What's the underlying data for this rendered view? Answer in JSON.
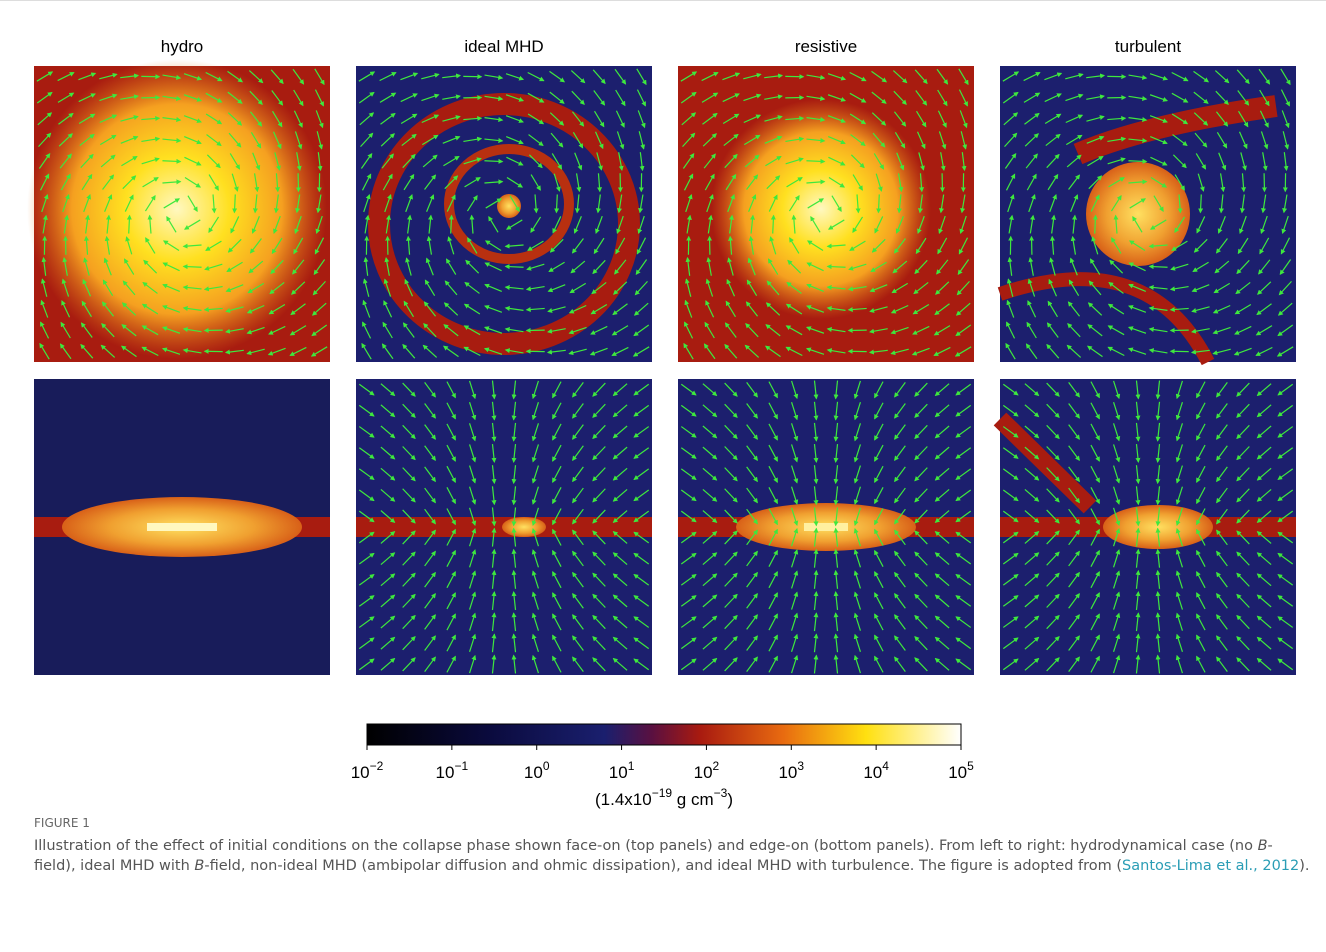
{
  "columns": [
    "hydro",
    "ideal MHD",
    "resistive",
    "turbulent"
  ],
  "colorbar": {
    "scale": "log",
    "lim": [
      0.01,
      100000
    ],
    "ticks": [
      {
        "value": 0.01,
        "base": "10",
        "exponent": "−2"
      },
      {
        "value": 0.1,
        "base": "10",
        "exponent": "−1"
      },
      {
        "value": 1,
        "base": "10",
        "exponent": "0"
      },
      {
        "value": 10,
        "base": "10",
        "exponent": "1"
      },
      {
        "value": 100,
        "base": "10",
        "exponent": "2"
      },
      {
        "value": 1000,
        "base": "10",
        "exponent": "3"
      },
      {
        "value": 10000,
        "base": "10",
        "exponent": "4"
      },
      {
        "value": 100000,
        "base": "10",
        "exponent": "5"
      }
    ],
    "label": [
      {
        "text": "(1.4x10"
      },
      {
        "sup": "−19"
      },
      {
        "text": " g cm"
      },
      {
        "sup": "−3"
      },
      {
        "text": ")"
      }
    ]
  },
  "caption": {
    "figure": "FIGURE 1",
    "body": [
      {
        "text": "Illustration of the effect of initial conditions on the collapse phase shown face-on (top panels) and edge-on (bottom panels). From left to right: hydrodynamical case (no "
      },
      {
        "italic": "B"
      },
      {
        "text": "-field), ideal MHD with "
      },
      {
        "italic": "B"
      },
      {
        "text": "-field, non-ideal MHD (ambipolar diffusion and ohmic dissipation), and ideal MHD with turbulence. The figure is adopted from ("
      },
      {
        "link": "Santos-Lima et al., 2012"
      },
      {
        "text": ")."
      }
    ]
  }
}
